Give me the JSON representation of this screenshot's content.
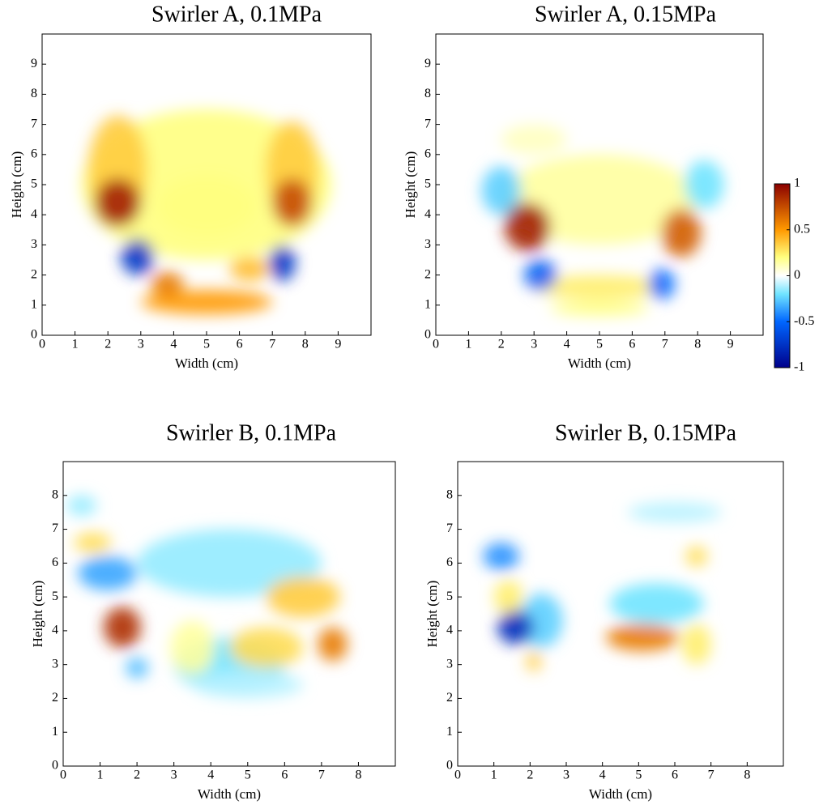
{
  "chart_data": [
    {
      "type": "heatmap",
      "title": "Swirler A, 0.1MPa",
      "x_label": "Width (cm)",
      "y_label": "Height (cm)",
      "xlim": [
        0,
        10
      ],
      "ylim": [
        0,
        10
      ],
      "xticks": [
        0,
        1,
        2,
        3,
        4,
        5,
        6,
        7,
        8,
        9
      ],
      "yticks": [
        0,
        1,
        2,
        3,
        4,
        5,
        6,
        7,
        8,
        9
      ],
      "blobs": [
        {
          "x": 5,
          "y": 5,
          "rx": 3.8,
          "ry": 2.5,
          "value": 0.2
        },
        {
          "x": 2.3,
          "y": 5.5,
          "rx": 0.9,
          "ry": 1.8,
          "value": 0.35
        },
        {
          "x": 7.6,
          "y": 5.5,
          "rx": 0.8,
          "ry": 1.6,
          "value": 0.35
        },
        {
          "x": 5,
          "y": 4.3,
          "rx": 1.5,
          "ry": 1,
          "value": 0.2
        },
        {
          "x": 2.3,
          "y": 4.4,
          "rx": 0.7,
          "ry": 0.8,
          "value": 0.9
        },
        {
          "x": 7.6,
          "y": 4.4,
          "rx": 0.6,
          "ry": 0.8,
          "value": 0.75
        },
        {
          "x": 2.9,
          "y": 2.6,
          "rx": 0.5,
          "ry": 0.6,
          "value": -0.75
        },
        {
          "x": 7.3,
          "y": 2.4,
          "rx": 0.4,
          "ry": 0.6,
          "value": -0.75
        },
        {
          "x": 5,
          "y": 1.1,
          "rx": 2,
          "ry": 0.4,
          "value": 0.5
        },
        {
          "x": 3.8,
          "y": 1.7,
          "rx": 0.5,
          "ry": 0.4,
          "value": 0.6
        },
        {
          "x": 6.3,
          "y": 2.2,
          "rx": 0.6,
          "ry": 0.4,
          "value": 0.4
        }
      ]
    },
    {
      "type": "heatmap",
      "title": "Swirler A, 0.15MPa",
      "x_label": "Width (cm)",
      "y_label": "Height (cm)",
      "xlim": [
        0,
        10
      ],
      "ylim": [
        0,
        10
      ],
      "xticks": [
        0,
        1,
        2,
        3,
        4,
        5,
        6,
        7,
        8,
        9
      ],
      "yticks": [
        0,
        1,
        2,
        3,
        4,
        5,
        6,
        7,
        8,
        9
      ],
      "blobs": [
        {
          "x": 5,
          "y": 4.5,
          "rx": 3,
          "ry": 1.5,
          "value": 0.15
        },
        {
          "x": 3,
          "y": 6.5,
          "rx": 1,
          "ry": 0.5,
          "value": 0.1
        },
        {
          "x": 2,
          "y": 4.8,
          "rx": 0.6,
          "ry": 0.8,
          "value": -0.25
        },
        {
          "x": 8.2,
          "y": 5,
          "rx": 0.6,
          "ry": 0.8,
          "value": -0.2
        },
        {
          "x": 5,
          "y": 1.6,
          "rx": 2,
          "ry": 0.4,
          "value": 0.25
        },
        {
          "x": 5,
          "y": 0.9,
          "rx": 1.5,
          "ry": 0.25,
          "value": 0.2
        },
        {
          "x": 2.8,
          "y": 3.6,
          "rx": 0.7,
          "ry": 0.8,
          "value": 0.9
        },
        {
          "x": 7.5,
          "y": 3.4,
          "rx": 0.6,
          "ry": 0.8,
          "value": 0.7
        },
        {
          "x": 3.2,
          "y": 2,
          "rx": 0.5,
          "ry": 0.5,
          "value": -0.55
        },
        {
          "x": 6.9,
          "y": 1.7,
          "rx": 0.4,
          "ry": 0.5,
          "value": -0.5
        }
      ]
    },
    {
      "type": "heatmap",
      "title": "Swirler B, 0.1MPa",
      "x_label": "Width (cm)",
      "y_label": "Height (cm)",
      "xlim": [
        0,
        9
      ],
      "ylim": [
        0,
        9
      ],
      "xticks": [
        0,
        1,
        2,
        3,
        4,
        5,
        6,
        7,
        8
      ],
      "yticks": [
        0,
        1,
        2,
        3,
        4,
        5,
        6,
        7,
        8
      ],
      "blobs": [
        {
          "x": 4.5,
          "y": 6,
          "rx": 2.5,
          "ry": 1,
          "value": -0.15
        },
        {
          "x": 4.5,
          "y": 3,
          "rx": 1.5,
          "ry": 0.8,
          "value": -0.2
        },
        {
          "x": 5,
          "y": 2.4,
          "rx": 1.5,
          "ry": 0.4,
          "value": -0.1
        },
        {
          "x": 0.5,
          "y": 7.7,
          "rx": 0.4,
          "ry": 0.3,
          "value": -0.15
        },
        {
          "x": 0.8,
          "y": 6.6,
          "rx": 0.5,
          "ry": 0.3,
          "value": 0.3
        },
        {
          "x": 1.2,
          "y": 5.7,
          "rx": 0.8,
          "ry": 0.5,
          "value": -0.35
        },
        {
          "x": 3.5,
          "y": 3.5,
          "rx": 0.6,
          "ry": 0.8,
          "value": 0.15
        },
        {
          "x": 6.5,
          "y": 5,
          "rx": 1,
          "ry": 0.6,
          "value": 0.35
        },
        {
          "x": 5.5,
          "y": 3.5,
          "rx": 1,
          "ry": 0.6,
          "value": 0.3
        },
        {
          "x": 2,
          "y": 2.9,
          "rx": 0.3,
          "ry": 0.3,
          "value": -0.3
        },
        {
          "x": 7.3,
          "y": 3.6,
          "rx": 0.4,
          "ry": 0.5,
          "value": 0.6
        },
        {
          "x": 1.6,
          "y": 4.1,
          "rx": 0.5,
          "ry": 0.6,
          "value": 0.85
        }
      ]
    },
    {
      "type": "heatmap",
      "title": "Swirler B, 0.15MPa",
      "x_label": "Width (cm)",
      "y_label": "Height (cm)",
      "xlim": [
        0,
        9
      ],
      "ylim": [
        0,
        9
      ],
      "xticks": [
        0,
        1,
        2,
        3,
        4,
        5,
        6,
        7,
        8
      ],
      "yticks": [
        0,
        1,
        2,
        3,
        4,
        5,
        6,
        7,
        8
      ],
      "blobs": [
        {
          "x": 6,
          "y": 7.5,
          "rx": 1.3,
          "ry": 0.3,
          "value": -0.1
        },
        {
          "x": 5.5,
          "y": 4.8,
          "rx": 1.3,
          "ry": 0.6,
          "value": -0.2
        },
        {
          "x": 2.3,
          "y": 4.3,
          "rx": 0.6,
          "ry": 0.8,
          "value": -0.25
        },
        {
          "x": 1.2,
          "y": 6.2,
          "rx": 0.5,
          "ry": 0.4,
          "value": -0.4
        },
        {
          "x": 1.4,
          "y": 5,
          "rx": 0.4,
          "ry": 0.5,
          "value": 0.25
        },
        {
          "x": 2.1,
          "y": 3.1,
          "rx": 0.2,
          "ry": 0.3,
          "value": 0.35
        },
        {
          "x": 6.6,
          "y": 6.2,
          "rx": 0.3,
          "ry": 0.3,
          "value": 0.3
        },
        {
          "x": 6.6,
          "y": 3.6,
          "rx": 0.4,
          "ry": 0.6,
          "value": 0.25
        },
        {
          "x": 5.1,
          "y": 3.8,
          "rx": 1,
          "ry": 0.4,
          "value": 0.6
        },
        {
          "x": 1.6,
          "y": 4.1,
          "rx": 0.5,
          "ry": 0.5,
          "value": -0.8
        }
      ]
    }
  ],
  "colorbar": {
    "clim": [
      -1,
      1
    ],
    "ticks": [
      1,
      0.5,
      0,
      -0.5,
      -1
    ],
    "colors": [
      {
        "value": -1,
        "color": "#00008b"
      },
      {
        "value": -0.5,
        "color": "#0066ff"
      },
      {
        "value": -0.2,
        "color": "#70e4ff"
      },
      {
        "value": 0,
        "color": "#ffffff"
      },
      {
        "value": 0.2,
        "color": "#ffff80"
      },
      {
        "value": 0.5,
        "color": "#ff9900"
      },
      {
        "value": 1,
        "color": "#8b0000"
      }
    ]
  }
}
